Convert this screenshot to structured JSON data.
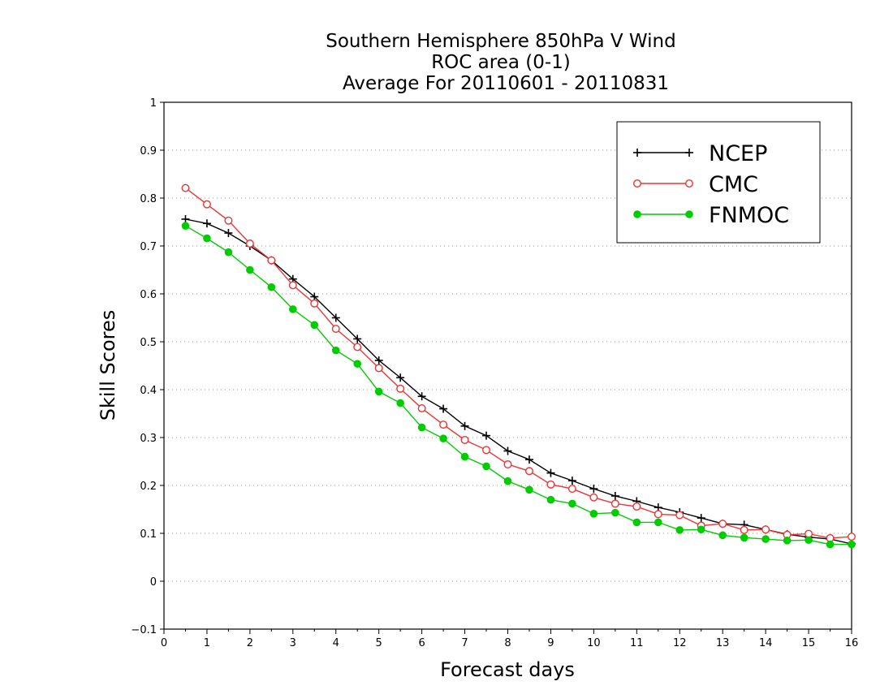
{
  "chart_data": {
    "type": "line",
    "title_lines": [
      "Southern Hemisphere 850hPa V Wind",
      "ROC area (0-1)",
      "Average For 20110601 - 20110831"
    ],
    "xlabel": "Forecast days",
    "ylabel": "Skill Scores",
    "xlim": [
      0,
      16
    ],
    "ylim": [
      -0.1,
      1
    ],
    "xticks": [
      "0",
      "1",
      "2",
      "3",
      "4",
      "5",
      "6",
      "7",
      "8",
      "9",
      "10",
      "11",
      "12",
      "13",
      "14",
      "15",
      "16"
    ],
    "yticks": [
      "−0.1",
      "0",
      "0.1",
      "0.2",
      "0.3",
      "0.4",
      "0.5",
      "0.6",
      "0.7",
      "0.8",
      "0.9",
      "1"
    ],
    "grid": "dotted horizontal",
    "legend_placement": "top-right",
    "x": [
      0.5,
      1,
      1.5,
      2,
      2.5,
      3,
      3.5,
      4,
      4.5,
      5,
      5.5,
      6,
      6.5,
      7,
      7.5,
      8,
      8.5,
      9,
      9.5,
      10,
      10.5,
      11,
      11.5,
      12,
      12.5,
      13,
      13.5,
      14,
      14.5,
      15,
      15.5,
      16
    ],
    "series": [
      {
        "name": "NCEP",
        "color": "#000000",
        "marker": "plus",
        "values": [
          0.756,
          0.747,
          0.727,
          0.7,
          0.67,
          0.631,
          0.594,
          0.55,
          0.506,
          0.461,
          0.425,
          0.386,
          0.36,
          0.324,
          0.304,
          0.272,
          0.254,
          0.226,
          0.21,
          0.193,
          0.178,
          0.167,
          0.154,
          0.144,
          0.132,
          0.12,
          0.118,
          0.108,
          0.098,
          0.092,
          0.088,
          0.078
        ]
      },
      {
        "name": "CMC",
        "color": "#ee3333",
        "marker": "open-circle",
        "values": [
          0.821,
          0.787,
          0.753,
          0.705,
          0.67,
          0.618,
          0.58,
          0.527,
          0.489,
          0.445,
          0.402,
          0.361,
          0.327,
          0.295,
          0.274,
          0.244,
          0.23,
          0.202,
          0.193,
          0.175,
          0.162,
          0.156,
          0.14,
          0.138,
          0.116,
          0.12,
          0.107,
          0.108,
          0.097,
          0.099,
          0.09,
          0.093
        ]
      },
      {
        "name": "FNMOC",
        "color": "#00cc00",
        "marker": "filled-circle",
        "values": [
          0.742,
          0.716,
          0.687,
          0.65,
          0.614,
          0.568,
          0.535,
          0.482,
          0.454,
          0.396,
          0.372,
          0.321,
          0.298,
          0.26,
          0.24,
          0.209,
          0.191,
          0.17,
          0.162,
          0.141,
          0.143,
          0.123,
          0.123,
          0.107,
          0.108,
          0.096,
          0.091,
          0.088,
          0.085,
          0.086,
          0.077,
          0.077
        ]
      }
    ]
  }
}
